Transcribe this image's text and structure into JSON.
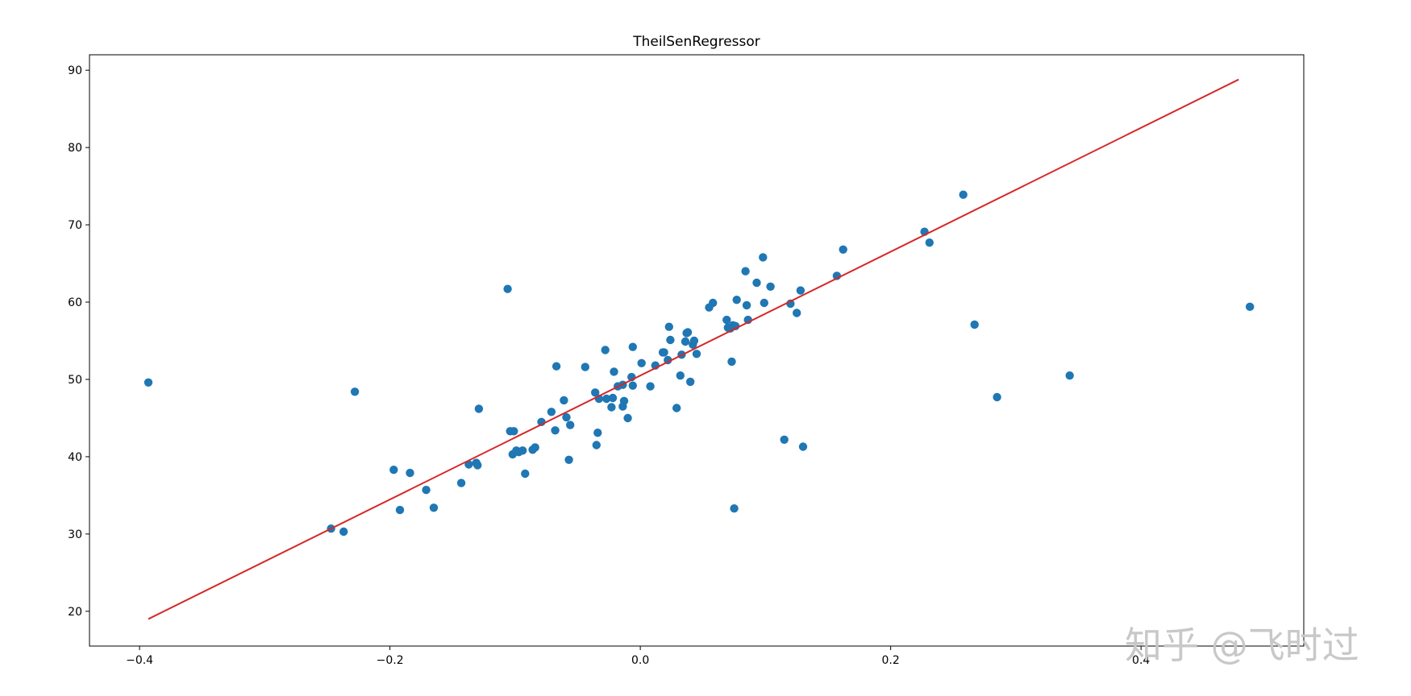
{
  "chart_data": {
    "type": "scatter",
    "title": "TheilSenRegressor",
    "xlabel": "",
    "ylabel": "",
    "xlim": [
      -0.44,
      0.53
    ],
    "ylim": [
      15.5,
      92.0
    ],
    "xticks": [
      -0.4,
      -0.2,
      0.0,
      0.2,
      0.4
    ],
    "xtick_labels": [
      "−0.4",
      "−0.2",
      "0.0",
      "0.2",
      "0.4"
    ],
    "yticks": [
      20,
      30,
      40,
      50,
      60,
      70,
      80,
      90
    ],
    "ytick_labels": [
      "20",
      "30",
      "40",
      "50",
      "60",
      "70",
      "80",
      "90"
    ],
    "grid": false,
    "colors": {
      "points": "#1f77b4",
      "line": "#d62728"
    },
    "regression_line": {
      "x": [
        -0.393,
        0.478
      ],
      "y": [
        19.0,
        88.8
      ]
    },
    "points": {
      "x": [
        -0.393,
        -0.247,
        -0.237,
        -0.228,
        -0.197,
        -0.192,
        -0.184,
        -0.171,
        -0.165,
        -0.143,
        -0.137,
        -0.131,
        -0.13,
        -0.129,
        -0.106,
        -0.104,
        -0.102,
        -0.101,
        -0.099,
        -0.097,
        -0.094,
        -0.092,
        -0.086,
        -0.084,
        -0.079,
        -0.071,
        -0.068,
        -0.067,
        -0.061,
        -0.059,
        -0.057,
        -0.056,
        -0.044,
        -0.036,
        -0.035,
        -0.034,
        -0.033,
        -0.028,
        -0.027,
        -0.023,
        -0.022,
        -0.021,
        -0.018,
        -0.014,
        -0.014,
        -0.013,
        -0.01,
        -0.007,
        -0.006,
        -0.006,
        0.001,
        0.008,
        0.012,
        0.018,
        0.019,
        0.022,
        0.023,
        0.024,
        0.029,
        0.032,
        0.033,
        0.036,
        0.037,
        0.038,
        0.04,
        0.042,
        0.043,
        0.045,
        0.055,
        0.058,
        0.069,
        0.07,
        0.071,
        0.072,
        0.073,
        0.074,
        0.075,
        0.076,
        0.077,
        0.084,
        0.085,
        0.086,
        0.093,
        0.098,
        0.099,
        0.104,
        0.115,
        0.12,
        0.125,
        0.128,
        0.13,
        0.157,
        0.162,
        0.227,
        0.231,
        0.258,
        0.267,
        0.285,
        0.343,
        0.487
      ],
      "y": [
        49.6,
        30.7,
        30.3,
        48.4,
        38.3,
        33.1,
        37.9,
        35.7,
        33.4,
        36.6,
        39.0,
        39.2,
        38.9,
        46.2,
        61.7,
        43.3,
        40.3,
        43.3,
        40.8,
        40.6,
        40.8,
        37.8,
        40.9,
        41.2,
        44.5,
        45.8,
        43.4,
        51.7,
        47.3,
        45.1,
        39.6,
        44.1,
        51.6,
        48.3,
        41.5,
        43.1,
        47.5,
        53.8,
        47.5,
        46.4,
        47.6,
        51.0,
        49.1,
        49.3,
        46.5,
        47.2,
        45.0,
        50.3,
        54.2,
        49.2,
        52.1,
        49.1,
        51.8,
        53.5,
        53.5,
        52.5,
        56.8,
        55.1,
        46.3,
        50.5,
        53.2,
        54.9,
        56.0,
        56.1,
        49.7,
        54.5,
        55.0,
        53.3,
        59.3,
        59.9,
        57.7,
        56.7,
        56.6,
        56.6,
        52.3,
        57.0,
        33.3,
        56.9,
        60.3,
        64.0,
        59.6,
        57.7,
        62.5,
        65.8,
        59.9,
        62.0,
        42.2,
        59.8,
        58.6,
        61.5,
        41.3,
        63.4,
        66.8,
        69.1,
        67.7,
        73.9,
        57.1,
        47.7,
        50.5,
        59.4
      ]
    }
  },
  "watermark": {
    "text": "知乎 @飞时过"
  }
}
